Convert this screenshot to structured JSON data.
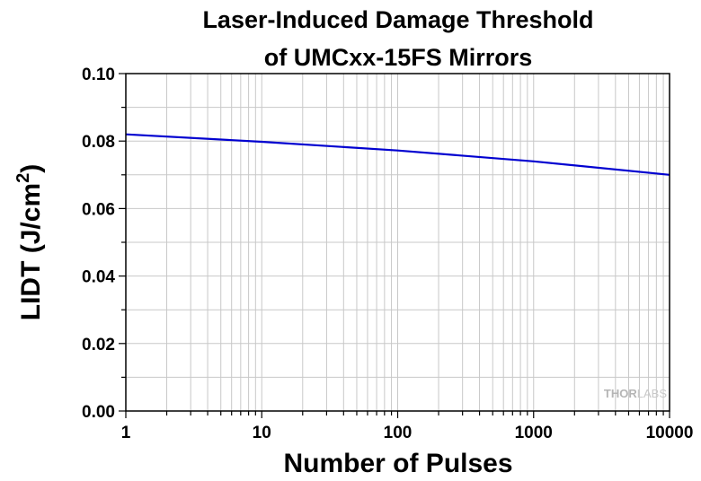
{
  "chart_data": {
    "type": "line",
    "title_line1": "Laser-Induced Damage Threshold",
    "title_line2": "of UMCxx-15FS Mirrors",
    "xlabel": "Number of Pulses",
    "ylabel_main": "LIDT (J/cm",
    "ylabel_sup": "2",
    "ylabel_close": ")",
    "x_scale": "log",
    "xlim": [
      1,
      10000
    ],
    "ylim": [
      0,
      0.1
    ],
    "x_ticks": [
      1,
      10,
      100,
      1000,
      10000
    ],
    "x_tick_labels": [
      "1",
      "10",
      "100",
      "1000",
      "10000"
    ],
    "y_ticks": [
      0,
      0.02,
      0.04,
      0.06,
      0.08,
      0.1
    ],
    "y_tick_labels": [
      "0.00",
      "0.02",
      "0.04",
      "0.06",
      "0.08",
      "0.10"
    ],
    "grid": true,
    "series": [
      {
        "color": "#0000d0",
        "x": [
          1,
          10,
          100,
          1000,
          10000
        ],
        "y": [
          0.082,
          0.0798,
          0.0772,
          0.074,
          0.07
        ]
      }
    ],
    "watermark_a": "THOR",
    "watermark_b": "LABS"
  }
}
